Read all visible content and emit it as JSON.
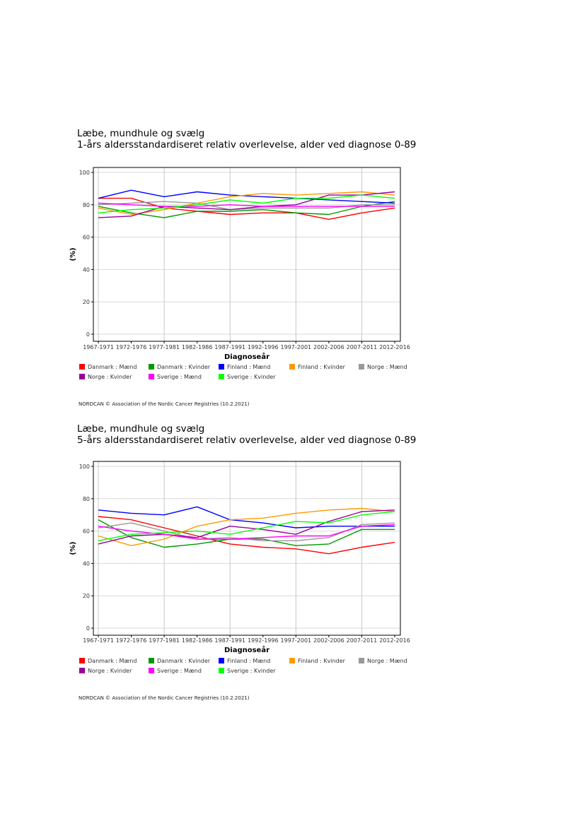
{
  "chart_data": [
    {
      "type": "line",
      "title": "Læbe, mundhule og svælg",
      "subtitle": "1-års aldersstandardiseret relativ overlevelse, alder ved diagnose 0-89",
      "xlabel": "Diagnoseår",
      "ylabel": "(%)",
      "ylim": [
        0,
        100
      ],
      "yticks": [
        0,
        20,
        40,
        60,
        80,
        100
      ],
      "categories": [
        "1967-1971",
        "1972-1976",
        "1977-1981",
        "1982-1986",
        "1987-1991",
        "1992-1996",
        "1997-2001",
        "2002-2006",
        "2007-2011",
        "2012-2016"
      ],
      "grid": true,
      "legend_position": "bottom",
      "footer": "NORDCAN © Association of the Nordic Cancer Registries (10.2.2021)",
      "series": [
        {
          "name": "Danmark : Mænd",
          "color": "#ff0000",
          "values": [
            84,
            84,
            78,
            76,
            74,
            75,
            75,
            71,
            75,
            78
          ]
        },
        {
          "name": "Danmark : Kvinder",
          "color": "#009900",
          "values": [
            79,
            75,
            72,
            76,
            76,
            77,
            75,
            74,
            79,
            82
          ]
        },
        {
          "name": "Finland : Mænd",
          "color": "#0000ff",
          "values": [
            84,
            89,
            85,
            88,
            86,
            85,
            84,
            83,
            82,
            81
          ]
        },
        {
          "name": "Finland : Kvinder",
          "color": "#ff9900",
          "values": [
            78,
            74,
            77,
            81,
            85,
            87,
            86,
            87,
            88,
            86
          ]
        },
        {
          "name": "Norge : Mænd",
          "color": "#999999",
          "values": [
            80,
            81,
            82,
            81,
            77,
            78,
            78,
            78,
            80,
            80
          ]
        },
        {
          "name": "Norge : Kvinder",
          "color": "#990099",
          "values": [
            72,
            73,
            79,
            78,
            77,
            79,
            80,
            86,
            86,
            88
          ]
        },
        {
          "name": "Sverige : Mænd",
          "color": "#ff00ff",
          "values": [
            81,
            80,
            79,
            79,
            80,
            79,
            79,
            79,
            79,
            79
          ]
        },
        {
          "name": "Sverige : Kvinder",
          "color": "#00ff00",
          "values": [
            75,
            77,
            78,
            80,
            83,
            81,
            84,
            84,
            86,
            84
          ]
        }
      ]
    },
    {
      "type": "line",
      "title": "Læbe, mundhule og svælg",
      "subtitle": "5-års aldersstandardiseret relativ overlevelse, alder ved diagnose 0-89",
      "xlabel": "Diagnoseår",
      "ylabel": "(%)",
      "ylim": [
        0,
        100
      ],
      "yticks": [
        0,
        20,
        40,
        60,
        80,
        100
      ],
      "categories": [
        "1967-1971",
        "1972-1976",
        "1977-1981",
        "1982-1986",
        "1987-1991",
        "1992-1996",
        "1997-2001",
        "2002-2006",
        "2007-2011",
        "2012-2016"
      ],
      "grid": true,
      "legend_position": "bottom",
      "footer": "NORDCAN © Association of the Nordic Cancer Registries (10.2.2021)",
      "series": [
        {
          "name": "Danmark : Mænd",
          "color": "#ff0000",
          "values": [
            69,
            67,
            62,
            57,
            52,
            50,
            49,
            46,
            50,
            53
          ]
        },
        {
          "name": "Danmark : Kvinder",
          "color": "#009900",
          "values": [
            67,
            56,
            50,
            52,
            55,
            55,
            51,
            52,
            61,
            61
          ]
        },
        {
          "name": "Finland : Mænd",
          "color": "#0000ff",
          "values": [
            73,
            71,
            70,
            75,
            67,
            65,
            62,
            63,
            63,
            63
          ]
        },
        {
          "name": "Finland : Kvinder",
          "color": "#ff9900",
          "values": [
            57,
            51,
            55,
            63,
            67,
            68,
            71,
            73,
            74,
            72
          ]
        },
        {
          "name": "Norge : Mænd",
          "color": "#999999",
          "values": [
            62,
            65,
            60,
            55,
            56,
            54,
            54,
            56,
            64,
            65
          ]
        },
        {
          "name": "Norge : Kvinder",
          "color": "#990099",
          "values": [
            52,
            57,
            58,
            56,
            63,
            61,
            58,
            66,
            72,
            73
          ]
        },
        {
          "name": "Sverige : Mænd",
          "color": "#ff00ff",
          "values": [
            63,
            60,
            58,
            55,
            55,
            56,
            57,
            57,
            63,
            64
          ]
        },
        {
          "name": "Sverige : Kvinder",
          "color": "#00ff00",
          "values": [
            54,
            58,
            59,
            60,
            58,
            62,
            66,
            65,
            70,
            72
          ]
        }
      ]
    }
  ]
}
